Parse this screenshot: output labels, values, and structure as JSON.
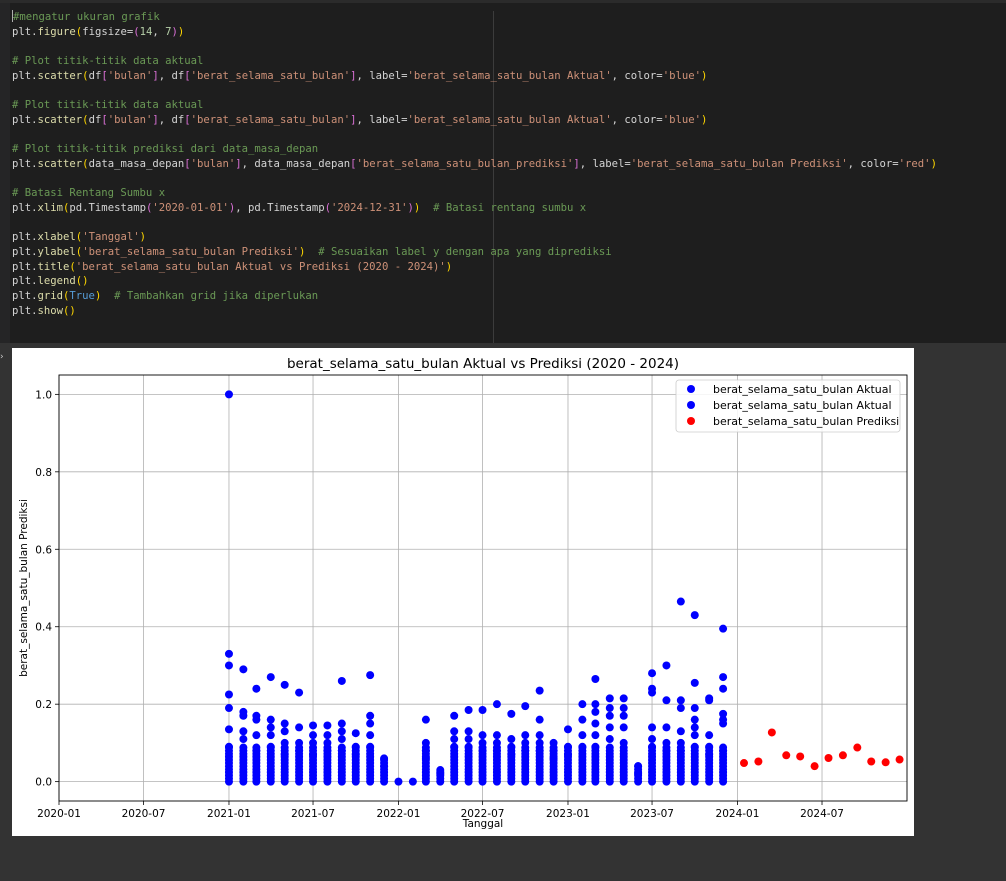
{
  "code_cell": {
    "lines": [
      [
        {
          "t": "#mengatur ukuran grafik",
          "c": "c-com"
        }
      ],
      [
        {
          "t": "plt."
        },
        {
          "t": "figure",
          "c": "c-fn"
        },
        {
          "t": "(",
          "c": "c-br1"
        },
        {
          "t": "figsize=",
          "c": ""
        },
        {
          "t": "(",
          "c": "c-br2"
        },
        {
          "t": "14",
          "c": "c-num"
        },
        {
          "t": ", "
        },
        {
          "t": "7",
          "c": "c-num"
        },
        {
          "t": ")",
          "c": "c-br2"
        },
        {
          "t": ")",
          "c": "c-br1"
        }
      ],
      [],
      [
        {
          "t": "# Plot titik-titik data aktual",
          "c": "c-com"
        }
      ],
      [
        {
          "t": "plt."
        },
        {
          "t": "scatter",
          "c": "c-fn"
        },
        {
          "t": "(",
          "c": "c-br1"
        },
        {
          "t": "df"
        },
        {
          "t": "[",
          "c": "c-br2"
        },
        {
          "t": "'bulan'",
          "c": "c-str"
        },
        {
          "t": "]",
          "c": "c-br2"
        },
        {
          "t": ", df"
        },
        {
          "t": "[",
          "c": "c-br2"
        },
        {
          "t": "'berat_selama_satu_bulan'",
          "c": "c-str"
        },
        {
          "t": "]",
          "c": "c-br2"
        },
        {
          "t": ", label="
        },
        {
          "t": "'berat_selama_satu_bulan Aktual'",
          "c": "c-str"
        },
        {
          "t": ", color="
        },
        {
          "t": "'blue'",
          "c": "c-str"
        },
        {
          "t": ")",
          "c": "c-br1"
        }
      ],
      [],
      [
        {
          "t": "# Plot titik-titik data aktual",
          "c": "c-com"
        }
      ],
      [
        {
          "t": "plt."
        },
        {
          "t": "scatter",
          "c": "c-fn"
        },
        {
          "t": "(",
          "c": "c-br1"
        },
        {
          "t": "df"
        },
        {
          "t": "[",
          "c": "c-br2"
        },
        {
          "t": "'bulan'",
          "c": "c-str"
        },
        {
          "t": "]",
          "c": "c-br2"
        },
        {
          "t": ", df"
        },
        {
          "t": "[",
          "c": "c-br2"
        },
        {
          "t": "'berat_selama_satu_bulan'",
          "c": "c-str"
        },
        {
          "t": "]",
          "c": "c-br2"
        },
        {
          "t": ", label="
        },
        {
          "t": "'berat_selama_satu_bulan Aktual'",
          "c": "c-str"
        },
        {
          "t": ", color="
        },
        {
          "t": "'blue'",
          "c": "c-str"
        },
        {
          "t": ")",
          "c": "c-br1"
        }
      ],
      [],
      [
        {
          "t": "# Plot titik-titik prediksi dari data_masa_depan",
          "c": "c-com"
        }
      ],
      [
        {
          "t": "plt."
        },
        {
          "t": "scatter",
          "c": "c-fn"
        },
        {
          "t": "(",
          "c": "c-br1"
        },
        {
          "t": "data_masa_depan"
        },
        {
          "t": "[",
          "c": "c-br2"
        },
        {
          "t": "'bulan'",
          "c": "c-str"
        },
        {
          "t": "]",
          "c": "c-br2"
        },
        {
          "t": ", data_masa_depan"
        },
        {
          "t": "[",
          "c": "c-br2"
        },
        {
          "t": "'berat_selama_satu_bulan_prediksi'",
          "c": "c-str"
        },
        {
          "t": "]",
          "c": "c-br2"
        },
        {
          "t": ", label="
        },
        {
          "t": "'berat_selama_satu_bulan Prediksi'",
          "c": "c-str"
        },
        {
          "t": ", color="
        },
        {
          "t": "'red'",
          "c": "c-str"
        },
        {
          "t": ")",
          "c": "c-br1"
        }
      ],
      [],
      [
        {
          "t": "# Batasi Rentang Sumbu x",
          "c": "c-com"
        }
      ],
      [
        {
          "t": "plt."
        },
        {
          "t": "xlim",
          "c": "c-fn"
        },
        {
          "t": "(",
          "c": "c-br1"
        },
        {
          "t": "pd.Timestamp"
        },
        {
          "t": "(",
          "c": "c-br2"
        },
        {
          "t": "'2020-01-01'",
          "c": "c-str"
        },
        {
          "t": ")",
          "c": "c-br2"
        },
        {
          "t": ", pd.Timestamp"
        },
        {
          "t": "(",
          "c": "c-br2"
        },
        {
          "t": "'2024-12-31'",
          "c": "c-str"
        },
        {
          "t": ")",
          "c": "c-br2"
        },
        {
          "t": ")",
          "c": "c-br1"
        },
        {
          "t": "  "
        },
        {
          "t": "# Batasi rentang sumbu x",
          "c": "c-com"
        }
      ],
      [],
      [
        {
          "t": "plt."
        },
        {
          "t": "xlabel",
          "c": "c-fn"
        },
        {
          "t": "(",
          "c": "c-br1"
        },
        {
          "t": "'Tanggal'",
          "c": "c-str"
        },
        {
          "t": ")",
          "c": "c-br1"
        }
      ],
      [
        {
          "t": "plt."
        },
        {
          "t": "ylabel",
          "c": "c-fn"
        },
        {
          "t": "(",
          "c": "c-br1"
        },
        {
          "t": "'berat_selama_satu_bulan Prediksi'",
          "c": "c-str"
        },
        {
          "t": ")",
          "c": "c-br1"
        },
        {
          "t": "  "
        },
        {
          "t": "# Sesuaikan label y dengan apa yang diprediksi",
          "c": "c-com"
        }
      ],
      [
        {
          "t": "plt."
        },
        {
          "t": "title",
          "c": "c-fn"
        },
        {
          "t": "(",
          "c": "c-br1"
        },
        {
          "t": "'berat_selama_satu_bulan Aktual vs Prediksi (2020 - 2024)'",
          "c": "c-str"
        },
        {
          "t": ")",
          "c": "c-br1"
        }
      ],
      [
        {
          "t": "plt."
        },
        {
          "t": "legend",
          "c": "c-fn"
        },
        {
          "t": "()",
          "c": "c-br1"
        }
      ],
      [
        {
          "t": "plt."
        },
        {
          "t": "grid",
          "c": "c-fn"
        },
        {
          "t": "(",
          "c": "c-br1"
        },
        {
          "t": "True",
          "c": "c-kw"
        },
        {
          "t": ")",
          "c": "c-br1"
        },
        {
          "t": "  "
        },
        {
          "t": "# Tambahkan grid jika diperlukan",
          "c": "c-com"
        }
      ],
      [
        {
          "t": "plt."
        },
        {
          "t": "show",
          "c": "c-fn"
        },
        {
          "t": "()",
          "c": "c-br1"
        }
      ]
    ]
  },
  "output_marker": "›",
  "chart_data": {
    "type": "scatter",
    "title": "berat_selama_satu_bulan Aktual vs Prediksi (2020 - 2024)",
    "xlabel": "Tanggal",
    "ylabel": "berat_selama_satu_bulan Prediksi",
    "xlim": [
      "2020-01-01",
      "2024-12-31"
    ],
    "ylim": [
      -0.05,
      1.05
    ],
    "x_ticks": [
      "2020-01",
      "2020-07",
      "2021-01",
      "2021-07",
      "2022-01",
      "2022-07",
      "2023-01",
      "2023-07",
      "2024-01",
      "2024-07"
    ],
    "y_ticks": [
      "0.0",
      "0.2",
      "0.4",
      "0.6",
      "0.8",
      "1.0"
    ],
    "grid": true,
    "legend_position": "top-right",
    "colors": {
      "actual": "#0000ff",
      "prediction": "#ff0000"
    },
    "series": [
      {
        "name": "berat_selama_satu_bulan Aktual",
        "color": "blue",
        "columns": [
          {
            "month": "2021-01",
            "top": 1.0,
            "others": [
              0.33,
              0.3,
              0.225,
              0.19,
              0.135,
              0.09
            ]
          },
          {
            "month": "2021-02",
            "top": 0.29,
            "others": [
              0.18,
              0.17,
              0.13,
              0.11
            ]
          },
          {
            "month": "2021-03",
            "top": 0.24,
            "others": [
              0.17,
              0.16,
              0.12,
              0.08
            ]
          },
          {
            "month": "2021-04",
            "top": 0.27,
            "others": [
              0.16,
              0.14,
              0.12,
              0.09
            ]
          },
          {
            "month": "2021-05",
            "top": 0.25,
            "others": [
              0.15,
              0.13,
              0.1,
              0.07
            ]
          },
          {
            "month": "2021-06",
            "top": 0.23,
            "others": [
              0.14,
              0.1,
              0.08
            ]
          },
          {
            "month": "2021-07",
            "top": 0.145,
            "others": [
              0.12,
              0.1,
              0.07
            ]
          },
          {
            "month": "2021-08",
            "top": 0.145,
            "others": [
              0.12,
              0.1,
              0.08
            ]
          },
          {
            "month": "2021-09",
            "top": 0.26,
            "others": [
              0.15,
              0.13,
              0.11,
              0.08
            ]
          },
          {
            "month": "2021-10",
            "top": 0.125,
            "others": [
              0.09,
              0.07
            ]
          },
          {
            "month": "2021-11",
            "top": 0.275,
            "others": [
              0.17,
              0.15,
              0.12,
              0.09
            ]
          },
          {
            "month": "2021-12",
            "top": 0.06,
            "others": [
              0.04
            ]
          },
          {
            "month": "2022-01",
            "top": 0.0,
            "others": []
          },
          {
            "month": "2022-02",
            "top": 0.0,
            "others": []
          },
          {
            "month": "2022-03",
            "top": 0.16,
            "others": [
              0.1,
              0.08,
              0.06
            ]
          },
          {
            "month": "2022-04",
            "top": 0.03,
            "others": [
              0.02
            ]
          },
          {
            "month": "2022-05",
            "top": 0.17,
            "others": [
              0.13,
              0.11,
              0.09
            ]
          },
          {
            "month": "2022-06",
            "top": 0.185,
            "others": [
              0.13,
              0.11,
              0.09
            ]
          },
          {
            "month": "2022-07",
            "top": 0.185,
            "others": [
              0.12,
              0.1,
              0.08
            ]
          },
          {
            "month": "2022-08",
            "top": 0.2,
            "others": [
              0.12,
              0.1,
              0.08
            ]
          },
          {
            "month": "2022-09",
            "top": 0.175,
            "others": [
              0.11,
              0.09,
              0.07
            ]
          },
          {
            "month": "2022-10",
            "top": 0.195,
            "others": [
              0.12,
              0.1,
              0.08
            ]
          },
          {
            "month": "2022-11",
            "top": 0.235,
            "others": [
              0.16,
              0.12,
              0.1,
              0.08
            ]
          },
          {
            "month": "2022-12",
            "top": 0.1,
            "others": [
              0.08,
              0.06
            ]
          },
          {
            "month": "2023-01",
            "top": 0.135,
            "others": [
              0.09,
              0.07
            ]
          },
          {
            "month": "2023-02",
            "top": 0.2,
            "others": [
              0.16,
              0.12,
              0.09
            ]
          },
          {
            "month": "2023-03",
            "top": 0.265,
            "others": [
              0.2,
              0.18,
              0.15,
              0.12,
              0.09
            ]
          },
          {
            "month": "2023-04",
            "top": 0.215,
            "others": [
              0.19,
              0.17,
              0.14,
              0.11
            ]
          },
          {
            "month": "2023-05",
            "top": 0.215,
            "others": [
              0.19,
              0.17,
              0.14,
              0.1
            ]
          },
          {
            "month": "2023-06",
            "top": 0.04,
            "others": [
              0.02
            ]
          },
          {
            "month": "2023-07",
            "top": 0.28,
            "others": [
              0.24,
              0.23,
              0.14,
              0.11,
              0.09
            ]
          },
          {
            "month": "2023-08",
            "top": 0.3,
            "others": [
              0.21,
              0.14,
              0.1,
              0.08
            ]
          },
          {
            "month": "2023-09",
            "top": 0.465,
            "others": [
              0.21,
              0.19,
              0.13,
              0.1,
              0.08
            ]
          },
          {
            "month": "2023-10",
            "top": 0.43,
            "others": [
              0.255,
              0.19,
              0.16,
              0.14,
              0.12,
              0.09
            ]
          },
          {
            "month": "2023-11",
            "top": 0.215,
            "others": [
              0.21,
              0.12,
              0.09,
              0.07
            ]
          },
          {
            "month": "2023-12",
            "top": 0.395,
            "others": [
              0.27,
              0.24,
              0.175,
              0.16,
              0.15,
              0.08
            ]
          }
        ]
      },
      {
        "name": "berat_selama_satu_bulan Aktual",
        "color": "blue",
        "columns": []
      },
      {
        "name": "berat_selama_satu_bulan Prediksi",
        "color": "red",
        "points": [
          {
            "x": "2024-01-15",
            "y": 0.048
          },
          {
            "x": "2024-02-15",
            "y": 0.052
          },
          {
            "x": "2024-03-15",
            "y": 0.127
          },
          {
            "x": "2024-04-15",
            "y": 0.068
          },
          {
            "x": "2024-05-15",
            "y": 0.065
          },
          {
            "x": "2024-06-15",
            "y": 0.04
          },
          {
            "x": "2024-07-15",
            "y": 0.061
          },
          {
            "x": "2024-08-15",
            "y": 0.068
          },
          {
            "x": "2024-09-15",
            "y": 0.088
          },
          {
            "x": "2024-10-15",
            "y": 0.052
          },
          {
            "x": "2024-11-15",
            "y": 0.05
          },
          {
            "x": "2024-12-15",
            "y": 0.057
          }
        ]
      }
    ]
  }
}
